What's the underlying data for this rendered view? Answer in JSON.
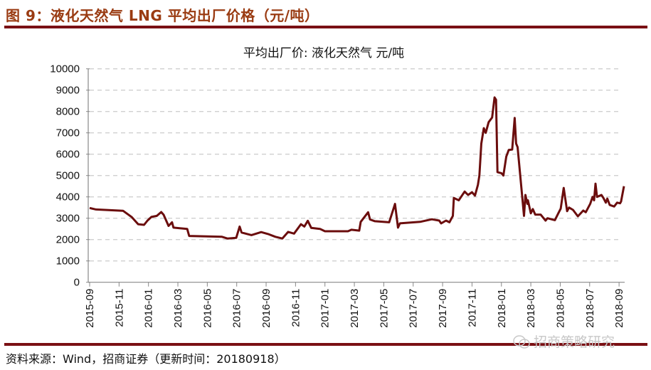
{
  "figure_title": "图 9：液化天然气 LNG 平均出厂价格（元/吨）",
  "source": "资料来源：Wind，招商证券（更新时间：20180918）",
  "watermark": "招商策略研究",
  "colors": {
    "title": "#9a3b12",
    "rule": "#7a1014",
    "line": "#6b0d0d",
    "grid": "#d0d0d0"
  },
  "chart_data": {
    "type": "line",
    "title": "平均出厂价: 液化天然气  元/吨",
    "ylim": [
      0,
      10000
    ],
    "yticks": [
      "0",
      "1000",
      "2000",
      "3000",
      "4000",
      "5000",
      "6000",
      "7000",
      "8000",
      "9000",
      "10000"
    ],
    "xticks": [
      "2015-09",
      "2015-11",
      "2016-01",
      "2016-03",
      "2016-05",
      "2016-07",
      "2016-09",
      "2016-11",
      "2017-01",
      "2017-03",
      "2017-05",
      "2017-07",
      "2017-09",
      "2017-11",
      "2018-01",
      "2018-03",
      "2018-05",
      "2018-07",
      "2018-09"
    ],
    "grid": "horizontal dashed",
    "series": [
      {
        "points": [
          [
            "2015-09-01",
            3480
          ],
          [
            "2015-09-14",
            3410
          ],
          [
            "2015-11-09",
            3350
          ],
          [
            "2015-11-27",
            3050
          ],
          [
            "2015-12-10",
            2720
          ],
          [
            "2015-12-22",
            2690
          ],
          [
            "2015-12-29",
            2890
          ],
          [
            "2016-01-07",
            3060
          ],
          [
            "2016-01-18",
            3110
          ],
          [
            "2016-01-27",
            3290
          ],
          [
            "2016-02-02",
            3160
          ],
          [
            "2016-02-12",
            2640
          ],
          [
            "2016-02-19",
            2810
          ],
          [
            "2016-02-22",
            2560
          ],
          [
            "2016-03-20",
            2500
          ],
          [
            "2016-03-24",
            2170
          ],
          [
            "2016-06-01",
            2130
          ],
          [
            "2016-06-12",
            2050
          ],
          [
            "2016-06-30",
            2080
          ],
          [
            "2016-07-07",
            2610
          ],
          [
            "2016-07-11",
            2330
          ],
          [
            "2016-07-31",
            2210
          ],
          [
            "2016-08-21",
            2350
          ],
          [
            "2016-09-05",
            2260
          ],
          [
            "2016-09-20",
            2130
          ],
          [
            "2016-10-04",
            2050
          ],
          [
            "2016-10-16",
            2360
          ],
          [
            "2016-10-28",
            2280
          ],
          [
            "2016-11-12",
            2720
          ],
          [
            "2016-11-19",
            2610
          ],
          [
            "2016-11-26",
            2880
          ],
          [
            "2016-12-03",
            2550
          ],
          [
            "2016-12-21",
            2500
          ],
          [
            "2017-01-01",
            2390
          ],
          [
            "2017-02-18",
            2390
          ],
          [
            "2017-02-25",
            2460
          ],
          [
            "2017-03-11",
            2420
          ],
          [
            "2017-03-14",
            2830
          ],
          [
            "2017-03-29",
            3280
          ],
          [
            "2017-04-03",
            2940
          ],
          [
            "2017-04-13",
            2860
          ],
          [
            "2017-05-12",
            2810
          ],
          [
            "2017-05-24",
            3670
          ],
          [
            "2017-05-30",
            2560
          ],
          [
            "2017-06-04",
            2760
          ],
          [
            "2017-07-15",
            2830
          ],
          [
            "2017-08-09",
            2950
          ],
          [
            "2017-08-24",
            2890
          ],
          [
            "2017-08-28",
            2760
          ],
          [
            "2017-09-08",
            2890
          ],
          [
            "2017-09-15",
            2810
          ],
          [
            "2017-09-22",
            3110
          ],
          [
            "2017-09-24",
            3950
          ],
          [
            "2017-10-04",
            3840
          ],
          [
            "2017-10-16",
            4250
          ],
          [
            "2017-10-23",
            4090
          ],
          [
            "2017-10-31",
            4220
          ],
          [
            "2017-11-07",
            4060
          ],
          [
            "2017-11-13",
            4560
          ],
          [
            "2017-11-16",
            5000
          ],
          [
            "2017-11-20",
            6500
          ],
          [
            "2017-11-25",
            7220
          ],
          [
            "2017-11-29",
            7000
          ],
          [
            "2017-12-05",
            7500
          ],
          [
            "2017-12-12",
            7720
          ],
          [
            "2017-12-17",
            8660
          ],
          [
            "2017-12-20",
            8550
          ],
          [
            "2017-12-23",
            5160
          ],
          [
            "2018-01-01",
            5110
          ],
          [
            "2018-01-05",
            5000
          ],
          [
            "2018-01-11",
            5890
          ],
          [
            "2018-01-16",
            6200
          ],
          [
            "2018-01-23",
            6220
          ],
          [
            "2018-01-28",
            7700
          ],
          [
            "2018-01-31",
            6500
          ],
          [
            "2018-02-04",
            6330
          ],
          [
            "2018-02-17",
            3110
          ],
          [
            "2018-02-20",
            4090
          ],
          [
            "2018-02-24",
            3670
          ],
          [
            "2018-02-25",
            3840
          ],
          [
            "2018-03-01",
            3230
          ],
          [
            "2018-03-05",
            3430
          ],
          [
            "2018-03-10",
            3170
          ],
          [
            "2018-03-21",
            3170
          ],
          [
            "2018-04-01",
            2890
          ],
          [
            "2018-04-05",
            3000
          ],
          [
            "2018-04-20",
            2910
          ],
          [
            "2018-04-27",
            3230
          ],
          [
            "2018-05-02",
            3450
          ],
          [
            "2018-05-08",
            4420
          ],
          [
            "2018-05-15",
            3330
          ],
          [
            "2018-05-19",
            3500
          ],
          [
            "2018-05-27",
            3390
          ],
          [
            "2018-06-07",
            3090
          ],
          [
            "2018-06-18",
            3360
          ],
          [
            "2018-06-23",
            3280
          ],
          [
            "2018-07-02",
            3670
          ],
          [
            "2018-07-07",
            4000
          ],
          [
            "2018-07-10",
            3840
          ],
          [
            "2018-07-13",
            4620
          ],
          [
            "2018-07-16",
            4000
          ],
          [
            "2018-07-25",
            4090
          ],
          [
            "2018-07-29",
            3950
          ],
          [
            "2018-08-04",
            3730
          ],
          [
            "2018-08-07",
            3920
          ],
          [
            "2018-08-12",
            3620
          ],
          [
            "2018-08-21",
            3550
          ],
          [
            "2018-08-27",
            3730
          ],
          [
            "2018-09-03",
            3700
          ],
          [
            "2018-09-05",
            3780
          ],
          [
            "2018-09-11",
            4500
          ]
        ]
      }
    ]
  }
}
